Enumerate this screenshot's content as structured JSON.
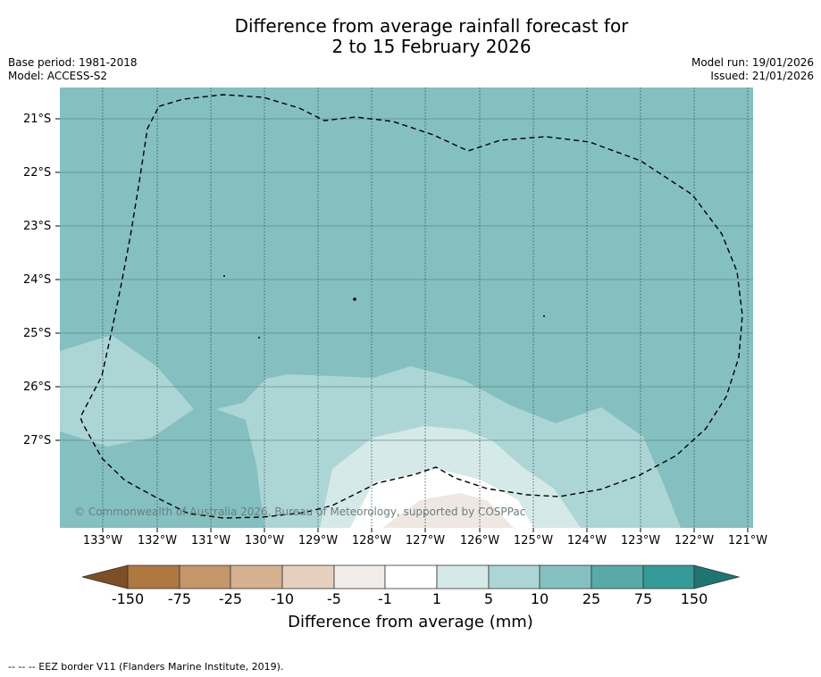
{
  "title": {
    "line1": "Difference from average rainfall forecast for",
    "line2": "2 to 15 February 2026"
  },
  "meta_left": {
    "base_period": "Base period: 1981-2018",
    "model": "Model: ACCESS-S2"
  },
  "meta_right": {
    "model_run": "Model run: 19/01/2026",
    "issued": "Issued: 21/01/2026"
  },
  "map": {
    "latitude_labels": [
      "21°S",
      "22°S",
      "23°S",
      "24°S",
      "25°S",
      "26°S",
      "27°S"
    ],
    "longitude_labels": [
      "133°W",
      "132°W",
      "131°W",
      "130°W",
      "129°W",
      "128°W",
      "127°W",
      "126°W",
      "125°W",
      "124°W",
      "123°W",
      "122°W",
      "121°W"
    ],
    "copyright": "© Commonwealth of Australia 2026, Bureau of Meteorology, supported by COSPPac",
    "background_class": "10 to 25",
    "colors": {
      "c10_25": "#84c0bf",
      "c5_10": "#acd6d5",
      "c1_5": "#d5e9e8",
      "cneg1_1": "#ffffff",
      "cneg5_neg1": "#efe7e2"
    }
  },
  "colorbar": {
    "ticks": [
      "-150",
      "-75",
      "-25",
      "-10",
      "-5",
      "-1",
      "1",
      "5",
      "10",
      "25",
      "75",
      "150"
    ],
    "colors": [
      "#7d4f25",
      "#ae7840",
      "#c4966a",
      "#d5b18f",
      "#e5d0bd",
      "#f1ece8",
      "#ffffff",
      "#d5e9e8",
      "#acd6d5",
      "#84c0bf",
      "#58aaa8",
      "#339a97",
      "#1f7571"
    ],
    "label": "Difference from average (mm)"
  },
  "footer": "--  --  -- EEZ border V11 (Flanders Marine Institute, 2019)."
}
